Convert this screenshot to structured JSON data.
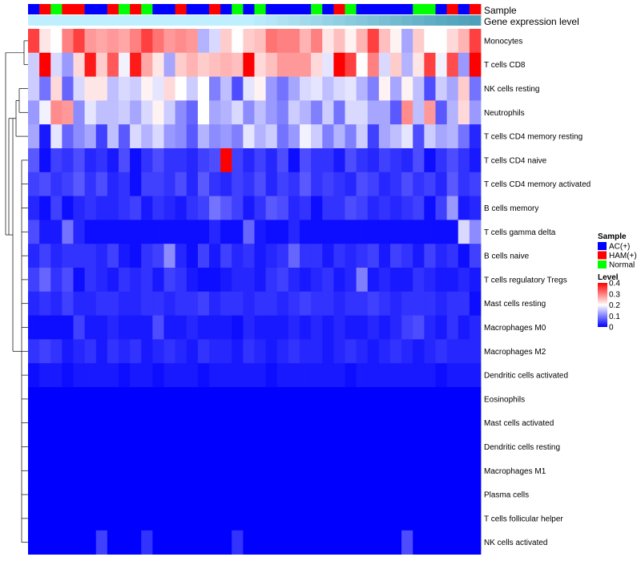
{
  "chart_data": {
    "type": "heatmap",
    "annotation_labels": {
      "sample": "Sample",
      "gene_expression": "Gene expression level"
    },
    "sample_legend": {
      "title": "Sample",
      "items": [
        {
          "label": "AC(+)",
          "color": "#0000FF"
        },
        {
          "label": "HAM(+)",
          "color": "#FF0000"
        },
        {
          "label": "Normal",
          "color": "#00FF00"
        }
      ]
    },
    "level_legend": {
      "title": "Level",
      "range": [
        0,
        0.4
      ],
      "ticks": [
        {
          "value": 0.4,
          "label": "0.4"
        },
        {
          "value": 0.3,
          "label": "0.3"
        },
        {
          "value": 0.2,
          "label": "0.2"
        },
        {
          "value": 0.1,
          "label": "0.1"
        },
        {
          "value": 0,
          "label": "0"
        }
      ],
      "colors": [
        "#0000FF",
        "#FFFFFF",
        "#FF0000"
      ]
    },
    "sample_groups": [
      "A",
      "H",
      "N",
      "H",
      "H",
      "A",
      "A",
      "H",
      "N",
      "H",
      "N",
      "A",
      "A",
      "H",
      "A",
      "A",
      "H",
      "A",
      "N",
      "A",
      "N",
      "A",
      "A",
      "A",
      "A",
      "N",
      "A",
      "H",
      "N",
      "A",
      "A",
      "A",
      "A",
      "A",
      "N",
      "N",
      "A",
      "H",
      "A",
      "H"
    ],
    "expression_level_colors": [
      "#BFEFFF",
      "#BFEFFF",
      "#BFEFFF",
      "#BFEFFF",
      "#BFEFFF",
      "#BFEFFF",
      "#BFEFFF",
      "#BFEFFF",
      "#BFEFFF",
      "#BFEFFF",
      "#BFEFFF",
      "#BFEFFF",
      "#BFEFFF",
      "#BFEFFF",
      "#BFEFFF",
      "#BFEFFF",
      "#BFEFFF",
      "#BFEFFF",
      "#BFEFFF",
      "#BFEFFF",
      "#B9EAFA",
      "#B4E6F7",
      "#AEE2F3",
      "#A8DEF0",
      "#A2DAEC",
      "#9CD6E9",
      "#96D2E5",
      "#90CEE2",
      "#8ACADE",
      "#84C6DB",
      "#7EC2D7",
      "#78BED4",
      "#72BAD0",
      "#6CB6CD",
      "#66B2C9",
      "#60AEC6",
      "#5AAAC2",
      "#55A6BF",
      "#51A3BC",
      "#4EA0BA"
    ],
    "rows": [
      {
        "name": "Monocytes",
        "values": [
          0.35,
          0.22,
          0.2,
          0.3,
          0.35,
          0.28,
          0.27,
          0.28,
          0.27,
          0.3,
          0.35,
          0.31,
          0.28,
          0.29,
          0.28,
          0.14,
          0.17,
          0.24,
          0.2,
          0.24,
          0.25,
          0.31,
          0.3,
          0.3,
          0.26,
          0.3,
          0.22,
          0.25,
          0.21,
          0.26,
          0.35,
          0.25,
          0.21,
          0.13,
          0.24,
          0.2,
          0.2,
          0.23,
          0.26,
          0.35
        ]
      },
      {
        "name": "T cells CD8",
        "values": [
          0.16,
          0.4,
          0.17,
          0.12,
          0.23,
          0.38,
          0.24,
          0.33,
          0.19,
          0.38,
          0.27,
          0.22,
          0.13,
          0.24,
          0.26,
          0.24,
          0.25,
          0.26,
          0.25,
          0.4,
          0.23,
          0.25,
          0.28,
          0.28,
          0.28,
          0.23,
          0.18,
          0.4,
          0.35,
          0.2,
          0.3,
          0.17,
          0.24,
          0.14,
          0.22,
          0.35,
          0.19,
          0.34,
          0.12,
          0.4
        ]
      },
      {
        "name": "NK cells resting",
        "values": [
          0.16,
          0.09,
          0.23,
          0.08,
          0.17,
          0.22,
          0.22,
          0.15,
          0.17,
          0.16,
          0.21,
          0.18,
          0.23,
          0.2,
          0.16,
          0.2,
          0.1,
          0.15,
          0.06,
          0.18,
          0.21,
          0.12,
          0.09,
          0.13,
          0.17,
          0.18,
          0.15,
          0.17,
          0.18,
          0.14,
          0.1,
          0.21,
          0.13,
          0.21,
          0.15,
          0.06,
          0.16,
          0.13,
          0.24,
          0.09
        ]
      },
      {
        "name": "Neutrophils",
        "values": [
          0.12,
          0.19,
          0.29,
          0.28,
          0.11,
          0.18,
          0.15,
          0.15,
          0.16,
          0.13,
          0.17,
          0.21,
          0.16,
          0.11,
          0.08,
          0.2,
          0.13,
          0.14,
          0.17,
          0.11,
          0.15,
          0.12,
          0.1,
          0.16,
          0.14,
          0.1,
          0.16,
          0.09,
          0.17,
          0.17,
          0.13,
          0.13,
          0.07,
          0.29,
          0.15,
          0.28,
          0.07,
          0.14,
          0.23,
          0.12
        ]
      },
      {
        "name": "T cells CD4 memory resting",
        "values": [
          0.13,
          0.02,
          0.18,
          0.08,
          0.11,
          0.13,
          0.05,
          0.15,
          0.07,
          0.17,
          0.14,
          0.17,
          0.12,
          0.11,
          0.07,
          0.14,
          0.11,
          0.12,
          0.1,
          0.18,
          0.14,
          0.16,
          0.09,
          0.12,
          0.19,
          0.16,
          0.1,
          0.14,
          0.1,
          0.16,
          0.05,
          0.13,
          0.15,
          0.18,
          0.06,
          0.16,
          0.13,
          0.14,
          0.09,
          0.03
        ]
      },
      {
        "name": "T cells CD4 naive",
        "values": [
          0.07,
          0.01,
          0.05,
          0.04,
          0.06,
          0.03,
          0.04,
          0.02,
          0.06,
          0.01,
          0.04,
          0.06,
          0.04,
          0.04,
          0.03,
          0.05,
          0.06,
          0.4,
          0.05,
          0.03,
          0.05,
          0.03,
          0.06,
          0.01,
          0.06,
          0.04,
          0.04,
          0.02,
          0.06,
          0.04,
          0.03,
          0.05,
          0.04,
          0.03,
          0.06,
          0.01,
          0.04,
          0.06,
          0.04,
          0.02
        ]
      },
      {
        "name": "T cells CD4 memory activated",
        "values": [
          0.05,
          0.06,
          0.04,
          0.05,
          0.07,
          0.04,
          0.06,
          0.03,
          0.04,
          0.01,
          0.05,
          0.05,
          0.04,
          0.06,
          0.03,
          0.07,
          0.04,
          0.03,
          0.05,
          0.04,
          0.06,
          0.03,
          0.05,
          0.04,
          0.07,
          0.04,
          0.05,
          0.04,
          0.03,
          0.06,
          0.05,
          0.03,
          0.04,
          0.06,
          0.04,
          0.05,
          0.03,
          0.07,
          0.04,
          0.05
        ]
      },
      {
        "name": "B cells memory",
        "values": [
          0.03,
          0.01,
          0.05,
          0.01,
          0.03,
          0.04,
          0.03,
          0.03,
          0.04,
          0.05,
          0.02,
          0.04,
          0.03,
          0.02,
          0.04,
          0.05,
          0.09,
          0.07,
          0.05,
          0.02,
          0.04,
          0.07,
          0.06,
          0.03,
          0.04,
          0.01,
          0.04,
          0.04,
          0.06,
          0.05,
          0.03,
          0.04,
          0.03,
          0.04,
          0.05,
          0.01,
          0.05,
          0.12,
          0.02,
          0.03
        ]
      },
      {
        "name": "T cells gamma delta",
        "values": [
          0.06,
          0.02,
          0.02,
          0.09,
          0.03,
          0.01,
          0.01,
          0.01,
          0.01,
          0.01,
          0.01,
          0.01,
          0.01,
          0.01,
          0.01,
          0.01,
          0.03,
          0.01,
          0.01,
          0.08,
          0.02,
          0.01,
          0.01,
          0.03,
          0.01,
          0.01,
          0.01,
          0.01,
          0.01,
          0.01,
          0.01,
          0.01,
          0.01,
          0.01,
          0.01,
          0.01,
          0.01,
          0.01,
          0.17,
          0.11
        ]
      },
      {
        "name": "B cells naive",
        "values": [
          0.03,
          0.05,
          0.03,
          0.04,
          0.04,
          0.04,
          0.03,
          0.05,
          0.02,
          0.01,
          0.04,
          0.05,
          0.11,
          0.03,
          0.01,
          0.05,
          0.02,
          0.05,
          0.03,
          0.04,
          0.02,
          0.03,
          0.04,
          0.08,
          0.04,
          0.04,
          0.02,
          0.04,
          0.03,
          0.04,
          0.05,
          0.02,
          0.05,
          0.04,
          0.02,
          0.05,
          0.03,
          0.04,
          0.01,
          0.05
        ]
      },
      {
        "name": "T cells regulatory  Tregs",
        "values": [
          0.05,
          0.08,
          0.04,
          0.06,
          0.01,
          0.04,
          0.03,
          0.02,
          0.04,
          0.03,
          0.04,
          0.02,
          0.05,
          0.04,
          0.02,
          0.01,
          0.01,
          0.02,
          0.03,
          0.03,
          0.02,
          0.04,
          0.05,
          0.03,
          0.02,
          0.03,
          0.04,
          0.02,
          0.03,
          0.1,
          0.02,
          0.03,
          0.02,
          0.02,
          0.04,
          0.03,
          0.02,
          0.02,
          0.03,
          0.02
        ]
      },
      {
        "name": "Mast cells resting",
        "values": [
          0.03,
          0.04,
          0.03,
          0.05,
          0.03,
          0.03,
          0.04,
          0.04,
          0.03,
          0.03,
          0.04,
          0.04,
          0.03,
          0.04,
          0.04,
          0.05,
          0.03,
          0.04,
          0.04,
          0.03,
          0.04,
          0.04,
          0.03,
          0.04,
          0.05,
          0.04,
          0.04,
          0.03,
          0.04,
          0.04,
          0.05,
          0.04,
          0.03,
          0.04,
          0.04,
          0.04,
          0.03,
          0.04,
          0.04,
          0.01
        ]
      },
      {
        "name": "Macrophages M0",
        "values": [
          0.01,
          0.01,
          0.01,
          0.01,
          0.05,
          0.02,
          0.02,
          0.03,
          0.02,
          0.02,
          0.02,
          0.06,
          0.02,
          0.02,
          0.03,
          0.02,
          0.02,
          0.02,
          0.01,
          0.03,
          0.02,
          0.02,
          0.02,
          0.03,
          0.02,
          0.03,
          0.02,
          0.03,
          0.02,
          0.02,
          0.03,
          0.02,
          0.03,
          0.05,
          0.06,
          0.03,
          0.02,
          0.04,
          0.02,
          0.03
        ]
      },
      {
        "name": "Macrophages M2",
        "values": [
          0.04,
          0.05,
          0.04,
          0.02,
          0.03,
          0.04,
          0.02,
          0.04,
          0.03,
          0.04,
          0.02,
          0.03,
          0.04,
          0.03,
          0.02,
          0.04,
          0.03,
          0.03,
          0.02,
          0.04,
          0.03,
          0.02,
          0.03,
          0.04,
          0.03,
          0.03,
          0.02,
          0.03,
          0.04,
          0.03,
          0.02,
          0.03,
          0.04,
          0.03,
          0.02,
          0.03,
          0.04,
          0.03,
          0.03,
          0.03
        ]
      },
      {
        "name": "Dendritic cells activated",
        "values": [
          0.01,
          0.02,
          0.02,
          0.01,
          0.02,
          0.02,
          0.02,
          0.02,
          0.01,
          0.02,
          0.02,
          0.01,
          0.02,
          0.02,
          0.02,
          0.01,
          0.02,
          0.02,
          0.02,
          0.02,
          0.02,
          0.01,
          0.02,
          0.02,
          0.02,
          0.02,
          0.02,
          0.02,
          0.01,
          0.02,
          0.02,
          0.02,
          0.02,
          0.02,
          0.02,
          0.02,
          0.01,
          0.02,
          0.02,
          0.02
        ]
      },
      {
        "name": "Eosinophils",
        "values": [
          0,
          0,
          0,
          0,
          0,
          0,
          0,
          0,
          0,
          0,
          0,
          0,
          0,
          0,
          0,
          0,
          0,
          0,
          0,
          0,
          0,
          0,
          0,
          0,
          0,
          0,
          0,
          0,
          0,
          0,
          0,
          0,
          0,
          0,
          0,
          0,
          0,
          0,
          0,
          0
        ]
      },
      {
        "name": "Mast cells activated",
        "values": [
          0,
          0,
          0,
          0,
          0,
          0,
          0,
          0,
          0,
          0,
          0,
          0,
          0,
          0,
          0,
          0,
          0,
          0,
          0,
          0,
          0,
          0,
          0,
          0,
          0,
          0,
          0,
          0,
          0,
          0,
          0,
          0,
          0,
          0,
          0,
          0,
          0,
          0,
          0,
          0
        ]
      },
      {
        "name": "Dendritic cells resting",
        "values": [
          0,
          0,
          0,
          0,
          0,
          0,
          0,
          0,
          0,
          0,
          0,
          0,
          0,
          0,
          0,
          0,
          0,
          0,
          0,
          0,
          0,
          0,
          0,
          0,
          0,
          0,
          0,
          0,
          0,
          0,
          0,
          0,
          0,
          0,
          0,
          0,
          0,
          0,
          0,
          0
        ]
      },
      {
        "name": "Macrophages M1",
        "values": [
          0,
          0,
          0,
          0,
          0,
          0,
          0,
          0,
          0,
          0,
          0,
          0,
          0,
          0,
          0,
          0,
          0,
          0,
          0,
          0,
          0,
          0,
          0,
          0,
          0,
          0,
          0,
          0,
          0,
          0,
          0,
          0,
          0,
          0,
          0,
          0,
          0,
          0,
          0,
          0
        ]
      },
      {
        "name": "Plasma cells",
        "values": [
          0,
          0,
          0,
          0,
          0,
          0,
          0,
          0,
          0,
          0,
          0,
          0,
          0,
          0,
          0,
          0,
          0,
          0,
          0,
          0,
          0,
          0,
          0,
          0,
          0,
          0,
          0,
          0,
          0,
          0,
          0,
          0,
          0,
          0,
          0,
          0,
          0,
          0,
          0,
          0
        ]
      },
      {
        "name": "T cells follicular helper",
        "values": [
          0,
          0,
          0,
          0,
          0,
          0,
          0,
          0,
          0,
          0,
          0,
          0,
          0,
          0,
          0,
          0,
          0,
          0,
          0,
          0,
          0,
          0,
          0,
          0,
          0,
          0,
          0,
          0,
          0,
          0,
          0,
          0,
          0,
          0,
          0,
          0,
          0,
          0,
          0,
          0
        ]
      },
      {
        "name": "NK cells activated",
        "values": [
          0,
          0,
          0,
          0,
          0,
          0,
          0.05,
          0,
          0,
          0,
          0.04,
          0,
          0,
          0,
          0,
          0,
          0,
          0,
          0.04,
          0,
          0,
          0,
          0,
          0,
          0,
          0,
          0,
          0,
          0,
          0,
          0,
          0,
          0,
          0.06,
          0,
          0,
          0,
          0,
          0,
          0
        ]
      }
    ]
  }
}
